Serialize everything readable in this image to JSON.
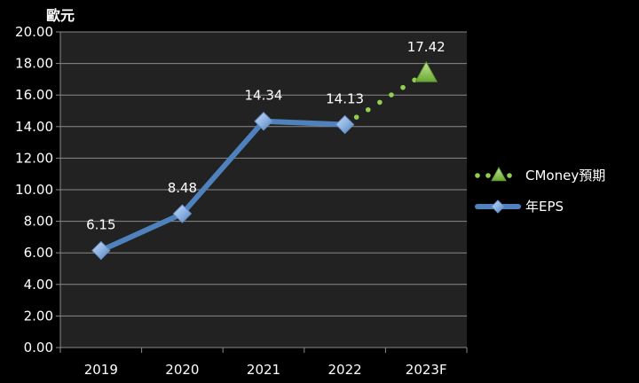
{
  "chart_data": {
    "type": "line",
    "title": "",
    "ylabel": "歐元",
    "xlabel": "",
    "ylim": [
      0,
      20
    ],
    "yticks": [
      "0.00",
      "2.00",
      "4.00",
      "6.00",
      "8.00",
      "10.00",
      "12.00",
      "14.00",
      "16.00",
      "18.00",
      "20.00"
    ],
    "categories": [
      "2019",
      "2020",
      "2021",
      "2022",
      "2023F"
    ],
    "grid": true,
    "legend_position": "right",
    "series": [
      {
        "name": "CMoney預期",
        "style": "dotted",
        "marker": "triangle",
        "color": "#92D050",
        "points": [
          {
            "x": "2022",
            "y": 14.13
          },
          {
            "x": "2023F",
            "y": 17.42,
            "label": "17.42"
          }
        ]
      },
      {
        "name": "年EPS",
        "style": "solid",
        "marker": "diamond",
        "color": "#4F81BD",
        "points": [
          {
            "x": "2019",
            "y": 6.15,
            "label": "6.15"
          },
          {
            "x": "2020",
            "y": 8.48,
            "label": "8.48"
          },
          {
            "x": "2021",
            "y": 14.34,
            "label": "14.34"
          },
          {
            "x": "2022",
            "y": 14.13,
            "label": "14.13"
          }
        ]
      }
    ]
  }
}
